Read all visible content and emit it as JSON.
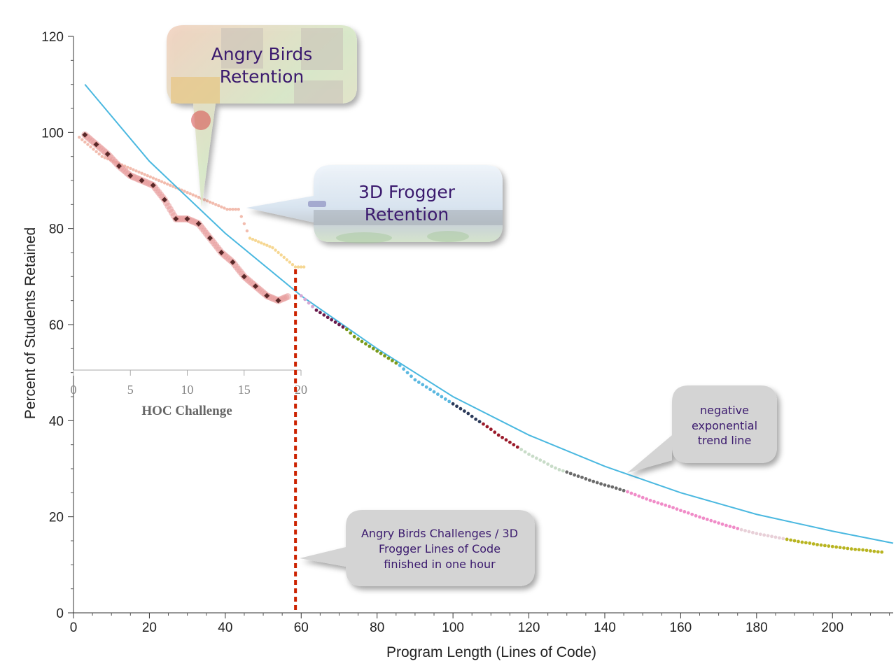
{
  "chart_data": {
    "type": "scatter",
    "xlabel": "Program Length (Lines of Code)",
    "ylabel": "Percent of Students Retained",
    "xlim": [
      0,
      216
    ],
    "ylim": [
      0,
      120
    ],
    "x_ticks": [
      0,
      20,
      40,
      60,
      80,
      100,
      120,
      140,
      160,
      180,
      200
    ],
    "y_ticks": [
      0,
      20,
      40,
      60,
      80,
      100,
      120
    ],
    "grid": false,
    "frogger_series": {
      "x": [
        60,
        62,
        64,
        66,
        68,
        70,
        72,
        74,
        76,
        78,
        80,
        82,
        84,
        86,
        88,
        90,
        92,
        94,
        96,
        98,
        100,
        102,
        104,
        106,
        108,
        110,
        112,
        114,
        116,
        118,
        120,
        122,
        124,
        126,
        128,
        130,
        132,
        134,
        136,
        138,
        140,
        142,
        144,
        146,
        148,
        150,
        152,
        154,
        156,
        158,
        160,
        162,
        164,
        166,
        168,
        170,
        172,
        174,
        176,
        178,
        180,
        182,
        184,
        186,
        188,
        190,
        192,
        194,
        196,
        198,
        200,
        202,
        204,
        206,
        208,
        210,
        212,
        214
      ],
      "y": [
        66,
        64.5,
        63,
        62,
        61,
        60,
        59,
        57.5,
        56.5,
        55.5,
        54.5,
        53.5,
        52.5,
        51.5,
        50,
        48.5,
        47.5,
        46.5,
        45.5,
        44.5,
        43.5,
        42.5,
        41.5,
        40.3,
        39.3,
        38.2,
        37,
        36,
        35,
        34,
        33,
        32.2,
        31.4,
        30.5,
        29.8,
        29.3,
        28.7,
        28.2,
        27.6,
        27.1,
        26.6,
        26.2,
        25.7,
        25.2,
        24.6,
        24.0,
        23.4,
        22.9,
        22.4,
        21.9,
        21.3,
        20.8,
        20.2,
        19.7,
        19.2,
        18.7,
        18.2,
        17.8,
        17.3,
        16.9,
        16.5,
        16.2,
        15.9,
        15.6,
        15.3,
        15.0,
        14.7,
        14.5,
        14.2,
        14.0,
        13.8,
        13.6,
        13.4,
        13.2,
        13.1,
        12.9,
        12.7,
        12.6
      ],
      "colors_by_x": [
        {
          "from": 60,
          "to": 64,
          "color": "#d4a8d4"
        },
        {
          "from": 64,
          "to": 72,
          "color": "#6a1b4d"
        },
        {
          "from": 72,
          "to": 86,
          "color": "#7a9a1a"
        },
        {
          "from": 86,
          "to": 100,
          "color": "#5bb8e0"
        },
        {
          "from": 100,
          "to": 108,
          "color": "#2b3a5a"
        },
        {
          "from": 108,
          "to": 118,
          "color": "#9a1a2a"
        },
        {
          "from": 118,
          "to": 130,
          "color": "#c8dcc8"
        },
        {
          "from": 130,
          "to": 146,
          "color": "#6a6a6a"
        },
        {
          "from": 146,
          "to": 176,
          "color": "#f08cc8"
        },
        {
          "from": 176,
          "to": 188,
          "color": "#e8d0d8"
        },
        {
          "from": 188,
          "to": 216,
          "color": "#b8b420"
        }
      ]
    },
    "trend_line": {
      "label": "negative exponential trend line",
      "color": "#4ab8e0",
      "start": [
        3,
        110
      ],
      "points": [
        [
          3,
          110
        ],
        [
          20,
          94
        ],
        [
          40,
          79
        ],
        [
          60,
          66
        ],
        [
          80,
          55
        ],
        [
          100,
          45
        ],
        [
          120,
          37
        ],
        [
          140,
          30.5
        ],
        [
          160,
          25
        ],
        [
          180,
          20.5
        ],
        [
          200,
          17
        ],
        [
          216,
          14.5
        ]
      ]
    },
    "cutoff_line": {
      "x": 58.5,
      "y_top": 71.5,
      "color": "#cc2200"
    },
    "inset": {
      "xlabel": "HOC Challenge",
      "x_ticks": [
        0,
        5,
        10,
        15,
        20
      ],
      "xlim": [
        0,
        20
      ],
      "ylim": [
        50,
        120
      ],
      "angry_birds_series": {
        "x": [
          1,
          2,
          3,
          4,
          5,
          6,
          7,
          8,
          9,
          10,
          11,
          12,
          13,
          14,
          15,
          16,
          17,
          18,
          19,
          20
        ],
        "y": [
          99.5,
          97.5,
          95.5,
          93,
          91,
          90,
          89,
          86,
          82,
          82,
          81,
          78,
          75,
          73,
          70,
          68,
          66,
          65,
          66,
          67
        ]
      },
      "faint_series": {
        "x": [
          1,
          2,
          3,
          4,
          5,
          6,
          7,
          8,
          9,
          10,
          11,
          12,
          13,
          14,
          15,
          16,
          17,
          18,
          19,
          20
        ],
        "y": [
          99,
          97,
          95,
          94,
          93,
          92,
          91,
          90,
          89,
          88,
          87,
          86,
          85,
          84,
          84,
          78,
          77,
          76,
          74,
          72
        ]
      },
      "series_colors": {
        "markers": "#5a2828",
        "halo": "#e89a9a",
        "faint": "#f0b0a0",
        "yellow": "#f5d080"
      }
    },
    "annotations": [
      {
        "id": "angry_birds",
        "lines": [
          "Angry Birds",
          "Retention"
        ]
      },
      {
        "id": "frogger",
        "lines": [
          "3D Frogger",
          "Retention"
        ]
      },
      {
        "id": "trend",
        "lines": [
          "negative",
          "exponential",
          "trend line"
        ]
      },
      {
        "id": "one_hour",
        "lines": [
          "Angry Birds Challenges / 3D",
          "Frogger Lines of Code",
          "finished in one hour"
        ]
      }
    ]
  }
}
